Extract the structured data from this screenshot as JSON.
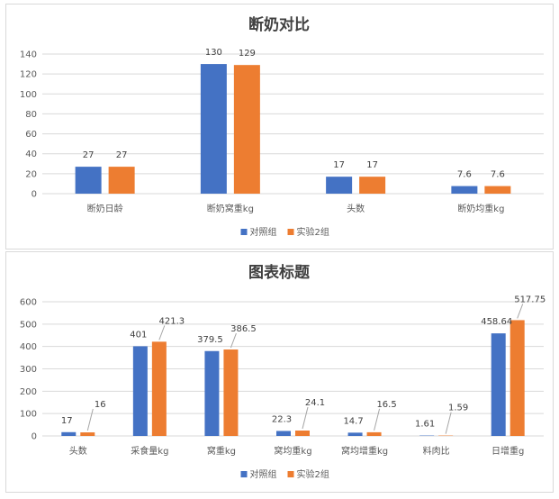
{
  "colors": {
    "series1": "#4472c4",
    "series2": "#ed7d31",
    "grid": "#d9d9d9"
  },
  "chart_data": [
    {
      "type": "bar",
      "title": "断奶对比",
      "categories": [
        "断奶日龄",
        "断奶窝重kg",
        "头数",
        "断奶均重kg"
      ],
      "series": [
        {
          "name": "对照组",
          "values": [
            27,
            130,
            17,
            7.6
          ],
          "labels": [
            "27",
            "130",
            "17",
            "7.6"
          ]
        },
        {
          "name": "实验2组",
          "values": [
            27,
            129,
            17,
            7.6
          ],
          "labels": [
            "27",
            "129",
            "17",
            "7.6"
          ]
        }
      ],
      "ylim": [
        0,
        140
      ],
      "yticks": [
        0,
        20,
        40,
        60,
        80,
        100,
        120,
        140
      ],
      "grid": true,
      "legend": "bottom"
    },
    {
      "type": "bar",
      "title": "图表标题",
      "categories": [
        "头数",
        "采食量kg",
        "窝重kg",
        "窝均重kg",
        "窝均增重kg",
        "料肉比",
        "日增重g"
      ],
      "series": [
        {
          "name": "对照组",
          "values": [
            17,
            401,
            379.5,
            22.3,
            14.7,
            1.61,
            458.64
          ],
          "labels": [
            "17",
            "401",
            "379.5",
            "22.3",
            "14.7",
            "1.61",
            "458.64"
          ]
        },
        {
          "name": "实验2组",
          "values": [
            16,
            421.3,
            386.5,
            24.1,
            16.5,
            1.59,
            517.75
          ],
          "labels": [
            "16",
            "421.3",
            "386.5",
            "24.1",
            "16.5",
            "1.59",
            "517.75"
          ]
        }
      ],
      "ylim": [
        0,
        600
      ],
      "yticks": [
        0,
        100,
        200,
        300,
        400,
        500,
        600
      ],
      "grid": true,
      "legend": "bottom"
    }
  ]
}
